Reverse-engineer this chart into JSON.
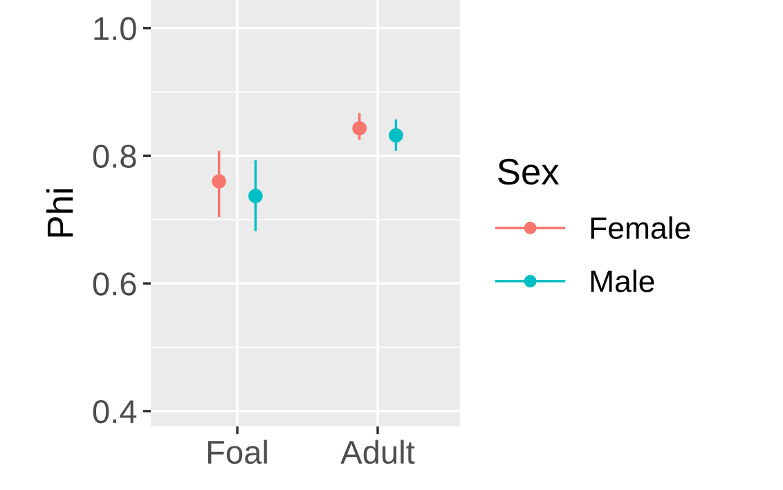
{
  "chart_data": {
    "type": "scatter",
    "ylabel": "Phi",
    "legend_title": "Sex",
    "legend": "right",
    "grid": true,
    "marker": "circle",
    "categories": [
      "Foal",
      "Adult"
    ],
    "ylim": [
      0.376,
      1.044
    ],
    "yticks": [
      {
        "value": 0.4,
        "label": "0.4"
      },
      {
        "value": 0.6,
        "label": "0.6"
      },
      {
        "value": 0.8,
        "label": "0.8"
      },
      {
        "value": 1.0,
        "label": "1.0"
      }
    ],
    "series": [
      {
        "name": "Female",
        "color": "#f8766d",
        "values": [
          0.76,
          0.843
        ],
        "errors": [
          [
            0.704,
            0.808
          ],
          [
            0.825,
            0.867
          ]
        ]
      },
      {
        "name": "Male",
        "color": "#00bfc4",
        "values": [
          0.737,
          0.832
        ],
        "errors": [
          [
            0.682,
            0.793
          ],
          [
            0.808,
            0.857
          ]
        ]
      }
    ]
  }
}
